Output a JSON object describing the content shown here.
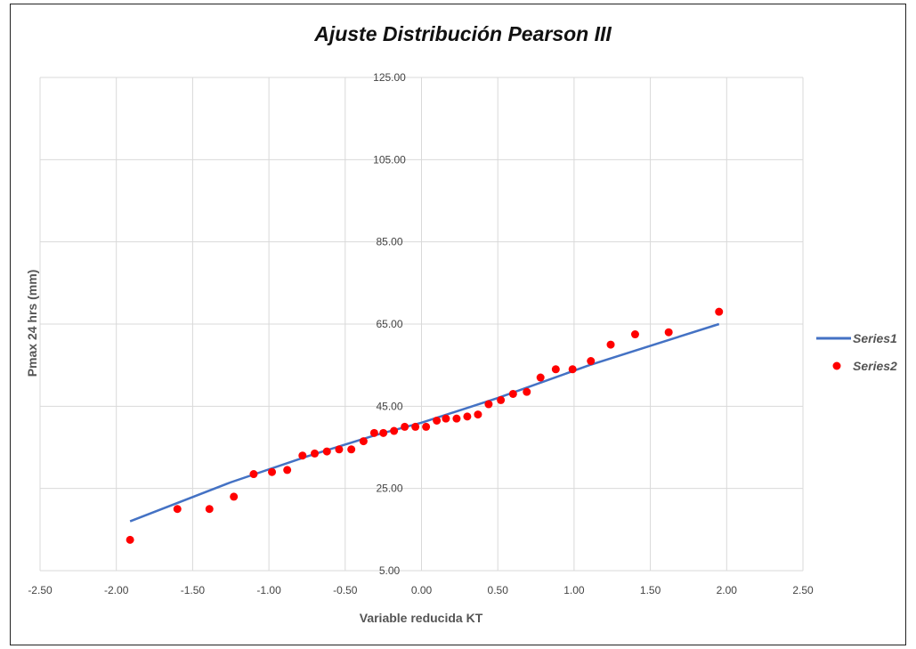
{
  "chart_data": {
    "type": "scatter",
    "title": "Ajuste Distribución Pearson III",
    "xlabel": "Variable reducida KT",
    "ylabel": "Pmax 24 hrs (mm)",
    "xlim": [
      -2.5,
      2.5
    ],
    "ylim": [
      5,
      125
    ],
    "x_ticks": [
      -2.5,
      -2.0,
      -1.5,
      -1.0,
      -0.5,
      0.0,
      0.5,
      1.0,
      1.5,
      2.0,
      2.5
    ],
    "x_tick_labels": [
      "-2.50",
      "-2.00",
      "-1.50",
      "-1.00",
      "-0.50",
      "0.00",
      "0.50",
      "1.00",
      "1.50",
      "2.00",
      "2.50"
    ],
    "y_ticks": [
      5,
      25,
      45,
      65,
      85,
      105,
      125
    ],
    "y_tick_labels": [
      "5.00",
      "25.00",
      "45.00",
      "65.00",
      "85.00",
      "105.00",
      "125.00"
    ],
    "grid": true,
    "legend_position": "right",
    "series": [
      {
        "name": "Series1",
        "kind": "line",
        "color": "#4472C4",
        "x": [
          -1.91,
          -1.25,
          -0.75,
          -0.3,
          0.0,
          0.5,
          1.1,
          1.95
        ],
        "y": [
          17.0,
          26.5,
          32.8,
          38.0,
          41.0,
          47.0,
          55.0,
          65.0
        ]
      },
      {
        "name": "Series2",
        "kind": "scatter",
        "color": "#FF0000",
        "x": [
          -1.91,
          -1.6,
          -1.39,
          -1.23,
          -1.1,
          -0.98,
          -0.88,
          -0.78,
          -0.7,
          -0.62,
          -0.54,
          -0.46,
          -0.38,
          -0.31,
          -0.25,
          -0.18,
          -0.11,
          -0.04,
          0.03,
          0.1,
          0.16,
          0.23,
          0.3,
          0.37,
          0.44,
          0.52,
          0.6,
          0.69,
          0.78,
          0.88,
          0.99,
          1.11,
          1.24,
          1.4,
          1.62,
          1.95
        ],
        "y": [
          12.5,
          20.0,
          20.0,
          23.0,
          28.5,
          29.0,
          29.5,
          33.0,
          33.5,
          34.0,
          34.5,
          34.5,
          36.5,
          38.5,
          38.5,
          39.0,
          40.0,
          40.0,
          40.0,
          41.5,
          42.0,
          42.0,
          42.5,
          43.0,
          45.5,
          46.5,
          48.0,
          48.5,
          52.0,
          54.0,
          54.0,
          56.0,
          60.0,
          62.5,
          63.0,
          68.0
        ]
      }
    ]
  }
}
